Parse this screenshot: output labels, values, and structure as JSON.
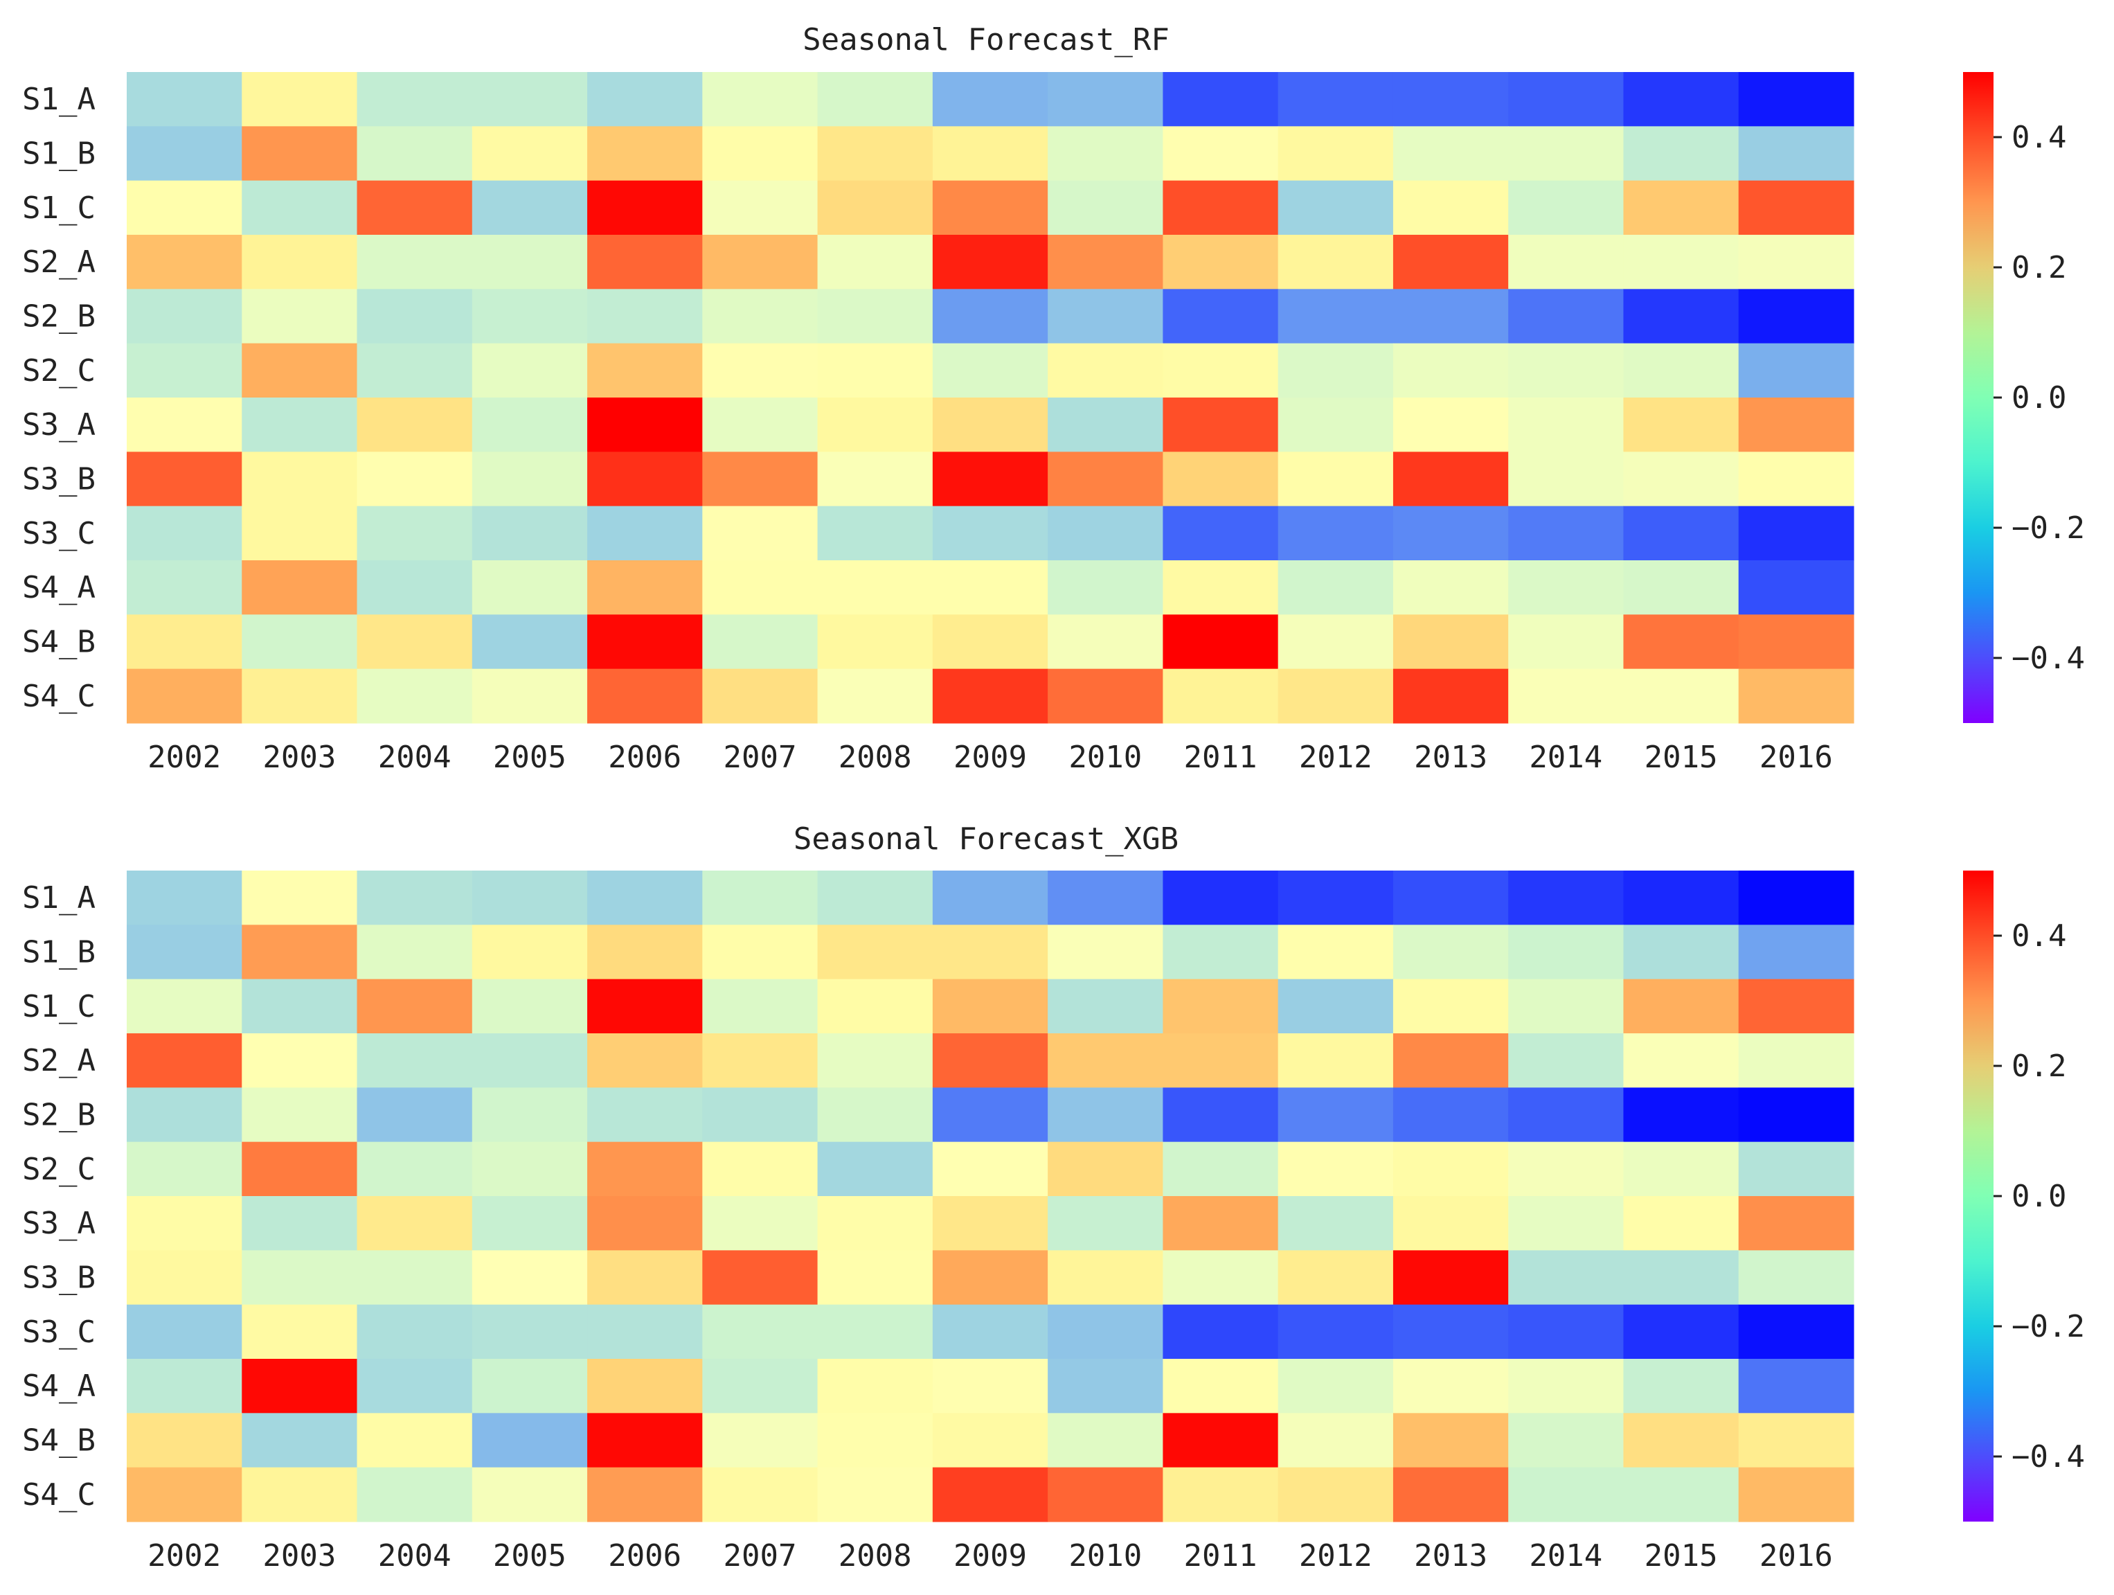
{
  "chart_data": [
    {
      "type": "heatmap",
      "title": "Seasonal Forecast_RF",
      "xlabel": "",
      "ylabel": "",
      "colormap": "rainbow",
      "vmin": -0.5,
      "vmax": 0.5,
      "x": [
        "2002",
        "2003",
        "2004",
        "2005",
        "2006",
        "2007",
        "2008",
        "2009",
        "2010",
        "2011",
        "2012",
        "2013",
        "2014",
        "2015",
        "2016"
      ],
      "y": [
        "S1_A",
        "S1_B",
        "S1_C",
        "S2_A",
        "S2_B",
        "S2_C",
        "S3_A",
        "S3_B",
        "S3_C",
        "S4_A",
        "S4_B",
        "S4_C"
      ],
      "colorbar_ticks": [
        0.4,
        0.2,
        0.0,
        -0.2,
        -0.4
      ],
      "colorbar_labels": [
        "0.4",
        "0.2",
        "0.0",
        "−0.2",
        "−0.4"
      ],
      "values": [
        [
          -0.17,
          0.08,
          -0.12,
          -0.12,
          -0.17,
          -0.05,
          -0.08,
          -0.25,
          -0.24,
          -0.4,
          -0.37,
          -0.37,
          -0.38,
          -0.43,
          -0.47
        ],
        [
          -0.2,
          0.3,
          -0.08,
          0.06,
          0.21,
          0.04,
          0.14,
          0.1,
          -0.06,
          0.02,
          0.07,
          -0.05,
          -0.05,
          -0.12,
          -0.2
        ],
        [
          0.03,
          -0.13,
          0.37,
          -0.18,
          0.49,
          -0.02,
          0.17,
          0.32,
          -0.08,
          0.4,
          -0.19,
          0.05,
          -0.09,
          0.21,
          0.39
        ],
        [
          0.23,
          0.1,
          -0.07,
          -0.07,
          0.37,
          0.24,
          -0.03,
          0.46,
          0.31,
          0.2,
          0.09,
          0.4,
          -0.03,
          -0.03,
          -0.02
        ],
        [
          -0.13,
          -0.04,
          -0.14,
          -0.11,
          -0.12,
          -0.06,
          -0.07,
          -0.29,
          -0.22,
          -0.37,
          -0.3,
          -0.3,
          -0.35,
          -0.43,
          -0.47
        ],
        [
          -0.11,
          0.26,
          -0.12,
          -0.05,
          0.22,
          0.02,
          0.03,
          -0.07,
          0.06,
          0.05,
          -0.07,
          -0.04,
          -0.05,
          -0.06,
          -0.26
        ],
        [
          0.02,
          -0.13,
          0.15,
          -0.09,
          0.5,
          -0.05,
          0.07,
          0.16,
          -0.16,
          0.4,
          -0.06,
          0.01,
          -0.03,
          0.15,
          0.3
        ],
        [
          0.38,
          0.07,
          0.02,
          -0.06,
          0.44,
          0.32,
          -0.01,
          0.48,
          0.33,
          0.19,
          0.04,
          0.43,
          -0.03,
          -0.02,
          0.03
        ],
        [
          -0.14,
          0.07,
          -0.12,
          -0.15,
          -0.19,
          0.02,
          -0.14,
          -0.17,
          -0.19,
          -0.37,
          -0.33,
          -0.32,
          -0.34,
          -0.38,
          -0.44
        ],
        [
          -0.12,
          0.28,
          -0.14,
          -0.06,
          0.25,
          0.03,
          0.03,
          0.03,
          -0.09,
          0.06,
          -0.09,
          -0.03,
          -0.07,
          -0.08,
          -0.4
        ],
        [
          0.12,
          -0.09,
          0.14,
          -0.19,
          0.49,
          -0.08,
          0.07,
          0.12,
          -0.02,
          0.5,
          -0.02,
          0.18,
          -0.03,
          0.35,
          0.34
        ],
        [
          0.26,
          0.11,
          -0.05,
          -0.02,
          0.37,
          0.16,
          -0.01,
          0.43,
          0.36,
          0.1,
          0.14,
          0.43,
          -0.01,
          -0.01,
          0.24
        ]
      ]
    },
    {
      "type": "heatmap",
      "title": "Seasonal Forecast_XGB",
      "xlabel": "",
      "ylabel": "",
      "colormap": "rainbow",
      "vmin": -0.5,
      "vmax": 0.5,
      "x": [
        "2002",
        "2003",
        "2004",
        "2005",
        "2006",
        "2007",
        "2008",
        "2009",
        "2010",
        "2011",
        "2012",
        "2013",
        "2014",
        "2015",
        "2016"
      ],
      "y": [
        "S1_A",
        "S1_B",
        "S1_C",
        "S2_A",
        "S2_B",
        "S2_C",
        "S3_A",
        "S3_B",
        "S3_C",
        "S4_A",
        "S4_B",
        "S4_C"
      ],
      "colorbar_ticks": [
        0.4,
        0.2,
        0.0,
        -0.2,
        -0.4
      ],
      "colorbar_labels": [
        "0.4",
        "0.2",
        "0.0",
        "−0.2",
        "−0.4"
      ],
      "values": [
        [
          -0.19,
          0.02,
          -0.15,
          -0.16,
          -0.19,
          -0.1,
          -0.13,
          -0.26,
          -0.31,
          -0.44,
          -0.42,
          -0.4,
          -0.43,
          -0.45,
          -0.49
        ],
        [
          -0.2,
          0.29,
          -0.06,
          0.07,
          0.17,
          0.04,
          0.14,
          0.14,
          -0.01,
          -0.12,
          0.03,
          -0.07,
          -0.1,
          -0.16,
          -0.28
        ],
        [
          -0.05,
          -0.15,
          0.3,
          -0.07,
          0.49,
          -0.07,
          0.05,
          0.24,
          -0.15,
          0.22,
          -0.2,
          0.05,
          -0.06,
          0.26,
          0.37
        ],
        [
          0.38,
          0.01,
          -0.13,
          -0.13,
          0.2,
          0.14,
          -0.05,
          0.37,
          0.21,
          0.21,
          0.07,
          0.32,
          -0.12,
          -0.01,
          -0.04
        ],
        [
          -0.16,
          -0.05,
          -0.22,
          -0.09,
          -0.14,
          -0.15,
          -0.08,
          -0.34,
          -0.22,
          -0.39,
          -0.33,
          -0.36,
          -0.38,
          -0.48,
          -0.49
        ],
        [
          -0.08,
          0.34,
          -0.09,
          -0.07,
          0.3,
          0.04,
          -0.18,
          0.01,
          0.17,
          -0.09,
          0.02,
          0.05,
          -0.02,
          -0.04,
          -0.15
        ],
        [
          0.05,
          -0.13,
          0.13,
          -0.11,
          0.31,
          -0.04,
          0.04,
          0.14,
          -0.11,
          0.27,
          -0.12,
          0.07,
          -0.05,
          0.04,
          0.31
        ],
        [
          0.07,
          -0.07,
          -0.07,
          0.0,
          0.16,
          0.38,
          0.03,
          0.27,
          0.09,
          -0.04,
          0.12,
          0.49,
          -0.15,
          -0.15,
          -0.09
        ],
        [
          -0.2,
          0.06,
          -0.16,
          -0.15,
          -0.15,
          -0.1,
          -0.1,
          -0.19,
          -0.22,
          -0.41,
          -0.39,
          -0.38,
          -0.39,
          -0.44,
          -0.48
        ],
        [
          -0.13,
          0.49,
          -0.17,
          -0.1,
          0.19,
          -0.11,
          0.04,
          0.02,
          -0.21,
          0.03,
          -0.06,
          -0.01,
          -0.03,
          -0.11,
          -0.35
        ],
        [
          0.15,
          -0.18,
          0.05,
          -0.24,
          0.49,
          -0.02,
          0.03,
          0.06,
          -0.06,
          0.49,
          -0.02,
          0.23,
          -0.08,
          0.16,
          0.12
        ],
        [
          0.24,
          0.09,
          -0.09,
          -0.02,
          0.29,
          0.06,
          0.02,
          0.42,
          0.37,
          0.11,
          0.14,
          0.36,
          -0.1,
          -0.1,
          0.24
        ]
      ]
    }
  ]
}
